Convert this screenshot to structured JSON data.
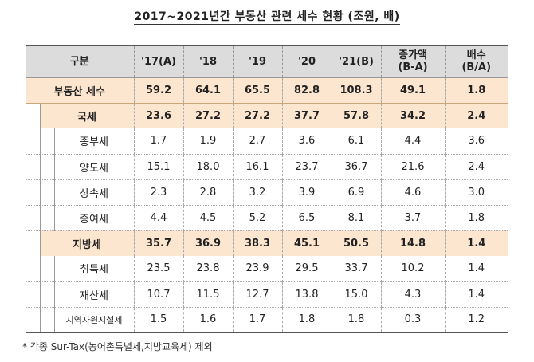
{
  "title": "2017~2021년간 부동산 관련 세수 현황 (조원, 배)",
  "headers": {
    "category": "구분",
    "y17": "'17(A)",
    "y18": "'18",
    "y19": "'19",
    "y20": "'20",
    "y21": "'21(B)",
    "increase_l1": "증가액",
    "increase_l2": "(B-A)",
    "ratio_l1": "배수",
    "ratio_l2": "(B/A)"
  },
  "total": {
    "label": "부동산 세수",
    "values": [
      "59.2",
      "64.1",
      "65.5",
      "82.8",
      "108.3",
      "49.1",
      "1.8"
    ]
  },
  "national": {
    "label": "국세",
    "values": [
      "23.6",
      "27.2",
      "27.2",
      "37.7",
      "57.8",
      "34.2",
      "2.4"
    ]
  },
  "national_items": [
    {
      "label": "종부세",
      "values": [
        "1.7",
        "1.9",
        "2.7",
        "3.6",
        "6.1",
        "4.4",
        "3.6"
      ]
    },
    {
      "label": "양도세",
      "values": [
        "15.1",
        "18.0",
        "16.1",
        "23.7",
        "36.7",
        "21.6",
        "2.4"
      ]
    },
    {
      "label": "상속세",
      "values": [
        "2.3",
        "2.8",
        "3.2",
        "3.9",
        "6.9",
        "4.6",
        "3.0"
      ]
    },
    {
      "label": "증여세",
      "values": [
        "4.4",
        "4.5",
        "5.2",
        "6.5",
        "8.1",
        "3.7",
        "1.8"
      ]
    }
  ],
  "local": {
    "label": "지방세",
    "values": [
      "35.7",
      "36.9",
      "38.3",
      "45.1",
      "50.5",
      "14.8",
      "1.4"
    ]
  },
  "local_items": [
    {
      "label": "취득세",
      "values": [
        "23.5",
        "23.8",
        "23.9",
        "29.5",
        "33.7",
        "10.2",
        "1.4"
      ]
    },
    {
      "label": "재산세",
      "values": [
        "10.7",
        "11.5",
        "12.7",
        "13.8",
        "15.0",
        "4.3",
        "1.4"
      ]
    },
    {
      "label": "지역자원시설세",
      "values": [
        "1.5",
        "1.6",
        "1.7",
        "1.8",
        "1.8",
        "0.3",
        "1.2"
      ]
    }
  ],
  "note": "* 각종 Sur-Tax(농어촌특별세,지방교육세) 제외"
}
